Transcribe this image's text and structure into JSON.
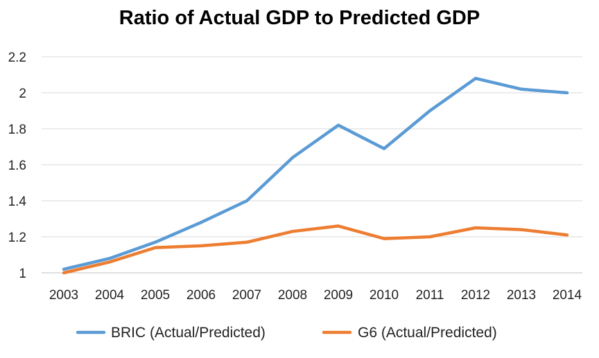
{
  "chart_data": {
    "type": "line",
    "title": "Ratio of Actual GDP to Predicted GDP",
    "xlabel": "",
    "ylabel": "",
    "x": [
      "2003",
      "2004",
      "2005",
      "2006",
      "2007",
      "2008",
      "2009",
      "2010",
      "2011",
      "2012",
      "2013",
      "2014"
    ],
    "ylim": [
      1,
      2.2
    ],
    "yticks": [
      "1",
      "1.2",
      "1.4",
      "1.6",
      "1.8",
      "2",
      "2.2"
    ],
    "ytick_values": [
      1,
      1.2,
      1.4,
      1.6,
      1.8,
      2,
      2.2
    ],
    "grid": true,
    "legend": "bottom",
    "series": [
      {
        "name": "BRIC (Actual/Predicted)",
        "color": "#5B9BD5",
        "values": [
          1.02,
          1.08,
          1.17,
          1.28,
          1.4,
          1.64,
          1.82,
          1.69,
          1.9,
          2.08,
          2.02,
          2.0
        ]
      },
      {
        "name": "G6 (Actual/Predicted)",
        "color": "#ED7D31",
        "values": [
          1.0,
          1.06,
          1.14,
          1.15,
          1.17,
          1.23,
          1.26,
          1.19,
          1.2,
          1.25,
          1.24,
          1.21
        ]
      }
    ]
  }
}
